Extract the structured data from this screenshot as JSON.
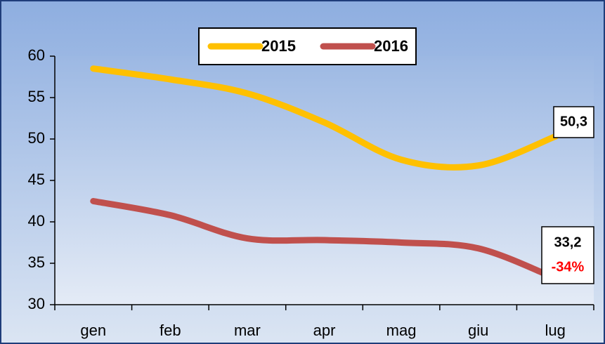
{
  "chart_data": {
    "type": "line",
    "categories": [
      "gen",
      "feb",
      "mar",
      "apr",
      "mag",
      "giu",
      "lug"
    ],
    "series": [
      {
        "name": "2015",
        "color": "#ffc000",
        "values": [
          58.5,
          57.2,
          55.5,
          52,
          47.5,
          46.8,
          50.3
        ],
        "value_labels": [
          null,
          null,
          null,
          null,
          null,
          null,
          "50,3"
        ]
      },
      {
        "name": "2016",
        "color": "#c0504d",
        "values": [
          42.5,
          40.8,
          38,
          37.8,
          37.5,
          36.8,
          33.2
        ],
        "value_labels": [
          null,
          null,
          null,
          null,
          null,
          null,
          "33,2"
        ]
      }
    ],
    "annotations": [
      "-34%"
    ],
    "ylim": [
      30,
      60
    ],
    "yticks": [
      30,
      35,
      40,
      45,
      50,
      55,
      60
    ],
    "smooth": true,
    "legend": "top"
  }
}
